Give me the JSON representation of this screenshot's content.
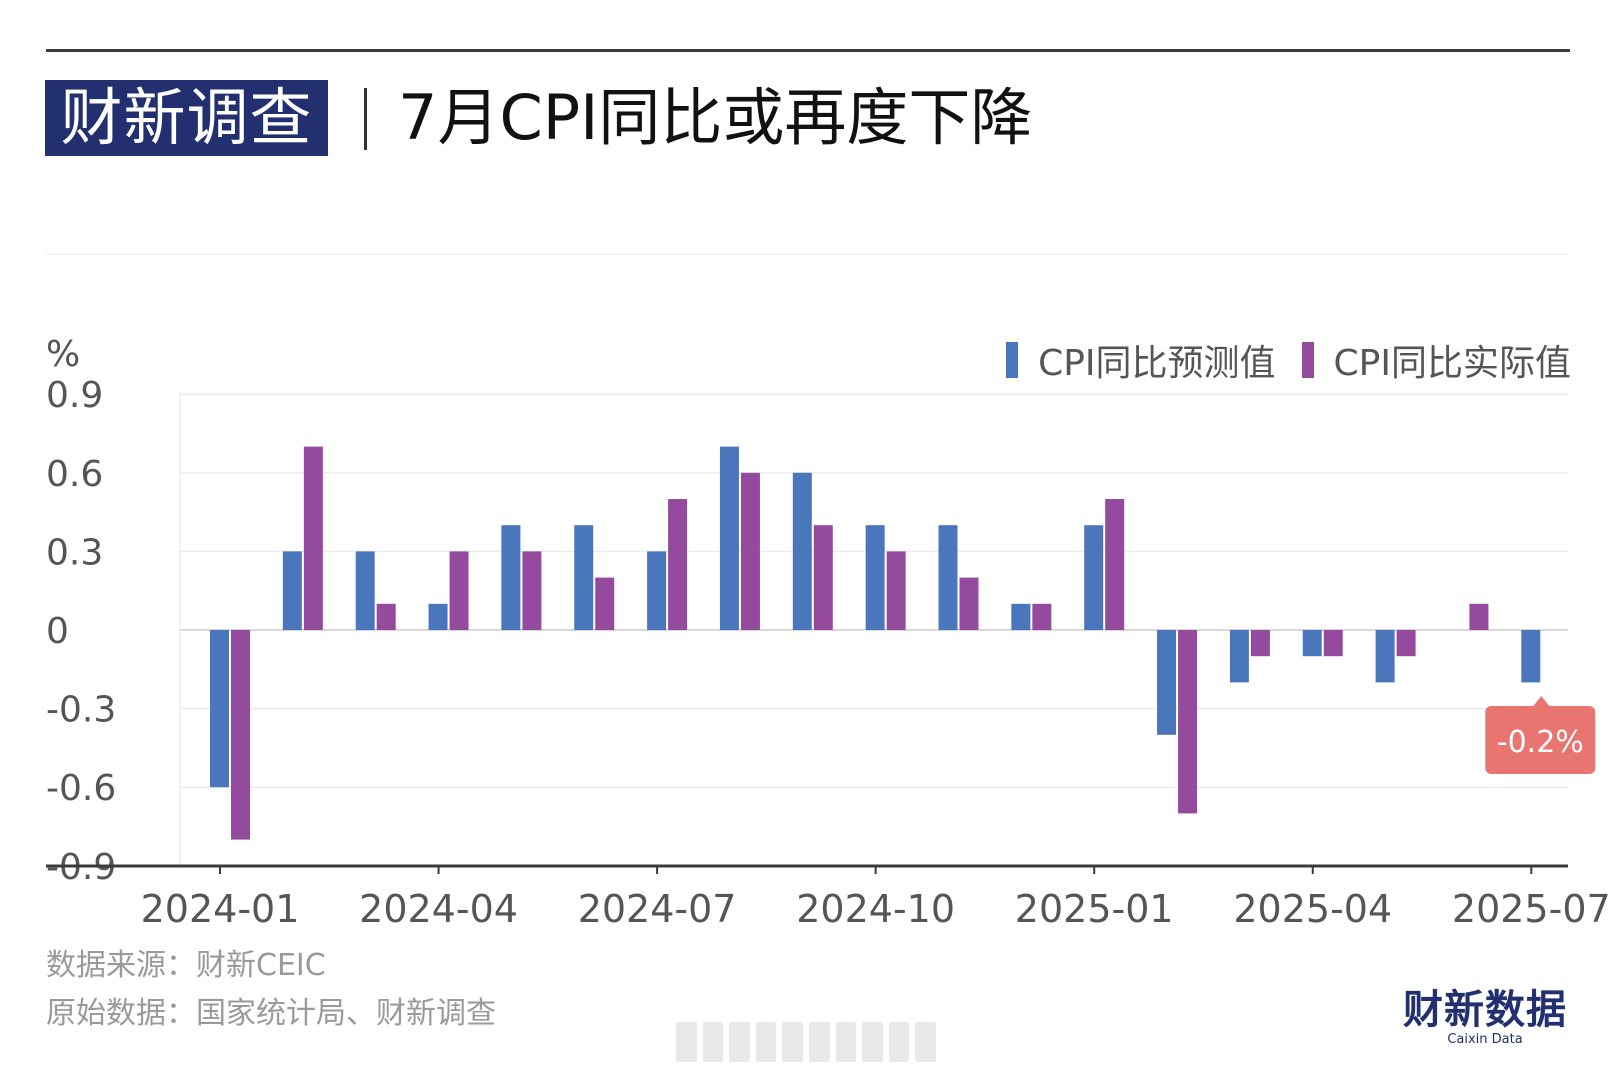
{
  "header": {
    "brand": "财新调查",
    "title": "7月CPI同比或再度下降"
  },
  "footer": {
    "source": "数据来源：财新CEIC",
    "raw_source": "原始数据：国家统计局、财新调查"
  },
  "logo": {
    "main": "财新数据",
    "sub": "Caixin Data"
  },
  "colors": {
    "forecast": "#4a77bb",
    "actual": "#944b9e",
    "callout": "#e87570",
    "brand": "#23306f"
  },
  "chart_data": {
    "type": "bar",
    "unit_label": "%",
    "legend_position": "top-right",
    "grid": true,
    "ylim": [
      -0.9,
      0.9
    ],
    "yticks": [
      "0.9",
      "0.6",
      "0.3",
      "0",
      "-0.3",
      "-0.6",
      "-0.9"
    ],
    "categories": [
      "2024-01",
      "2024-02",
      "2024-03",
      "2024-04",
      "2024-05",
      "2024-06",
      "2024-07",
      "2024-08",
      "2024-09",
      "2024-10",
      "2024-11",
      "2024-12",
      "2025-01",
      "2025-02",
      "2025-03",
      "2025-04",
      "2025-05",
      "2025-06",
      "2025-07"
    ],
    "xtick_labels": [
      "2024-01",
      "2024-04",
      "2024-07",
      "2024-10",
      "2025-01",
      "2025-04",
      "2025-07"
    ],
    "series": [
      {
        "name": "CPI同比预测值",
        "values": [
          -0.6,
          0.3,
          0.3,
          0.1,
          0.4,
          0.4,
          0.3,
          0.7,
          0.6,
          0.4,
          0.4,
          0.1,
          0.4,
          -0.4,
          -0.2,
          -0.1,
          -0.2,
          null,
          -0.2
        ]
      },
      {
        "name": "CPI同比实际值",
        "values": [
          -0.8,
          0.7,
          0.1,
          0.3,
          0.3,
          0.2,
          0.5,
          0.6,
          0.4,
          0.3,
          0.2,
          0.1,
          0.5,
          -0.7,
          -0.1,
          -0.1,
          -0.1,
          0.1,
          null
        ]
      }
    ],
    "annotation": {
      "category": "2025-07",
      "text": "-0.2%"
    }
  }
}
